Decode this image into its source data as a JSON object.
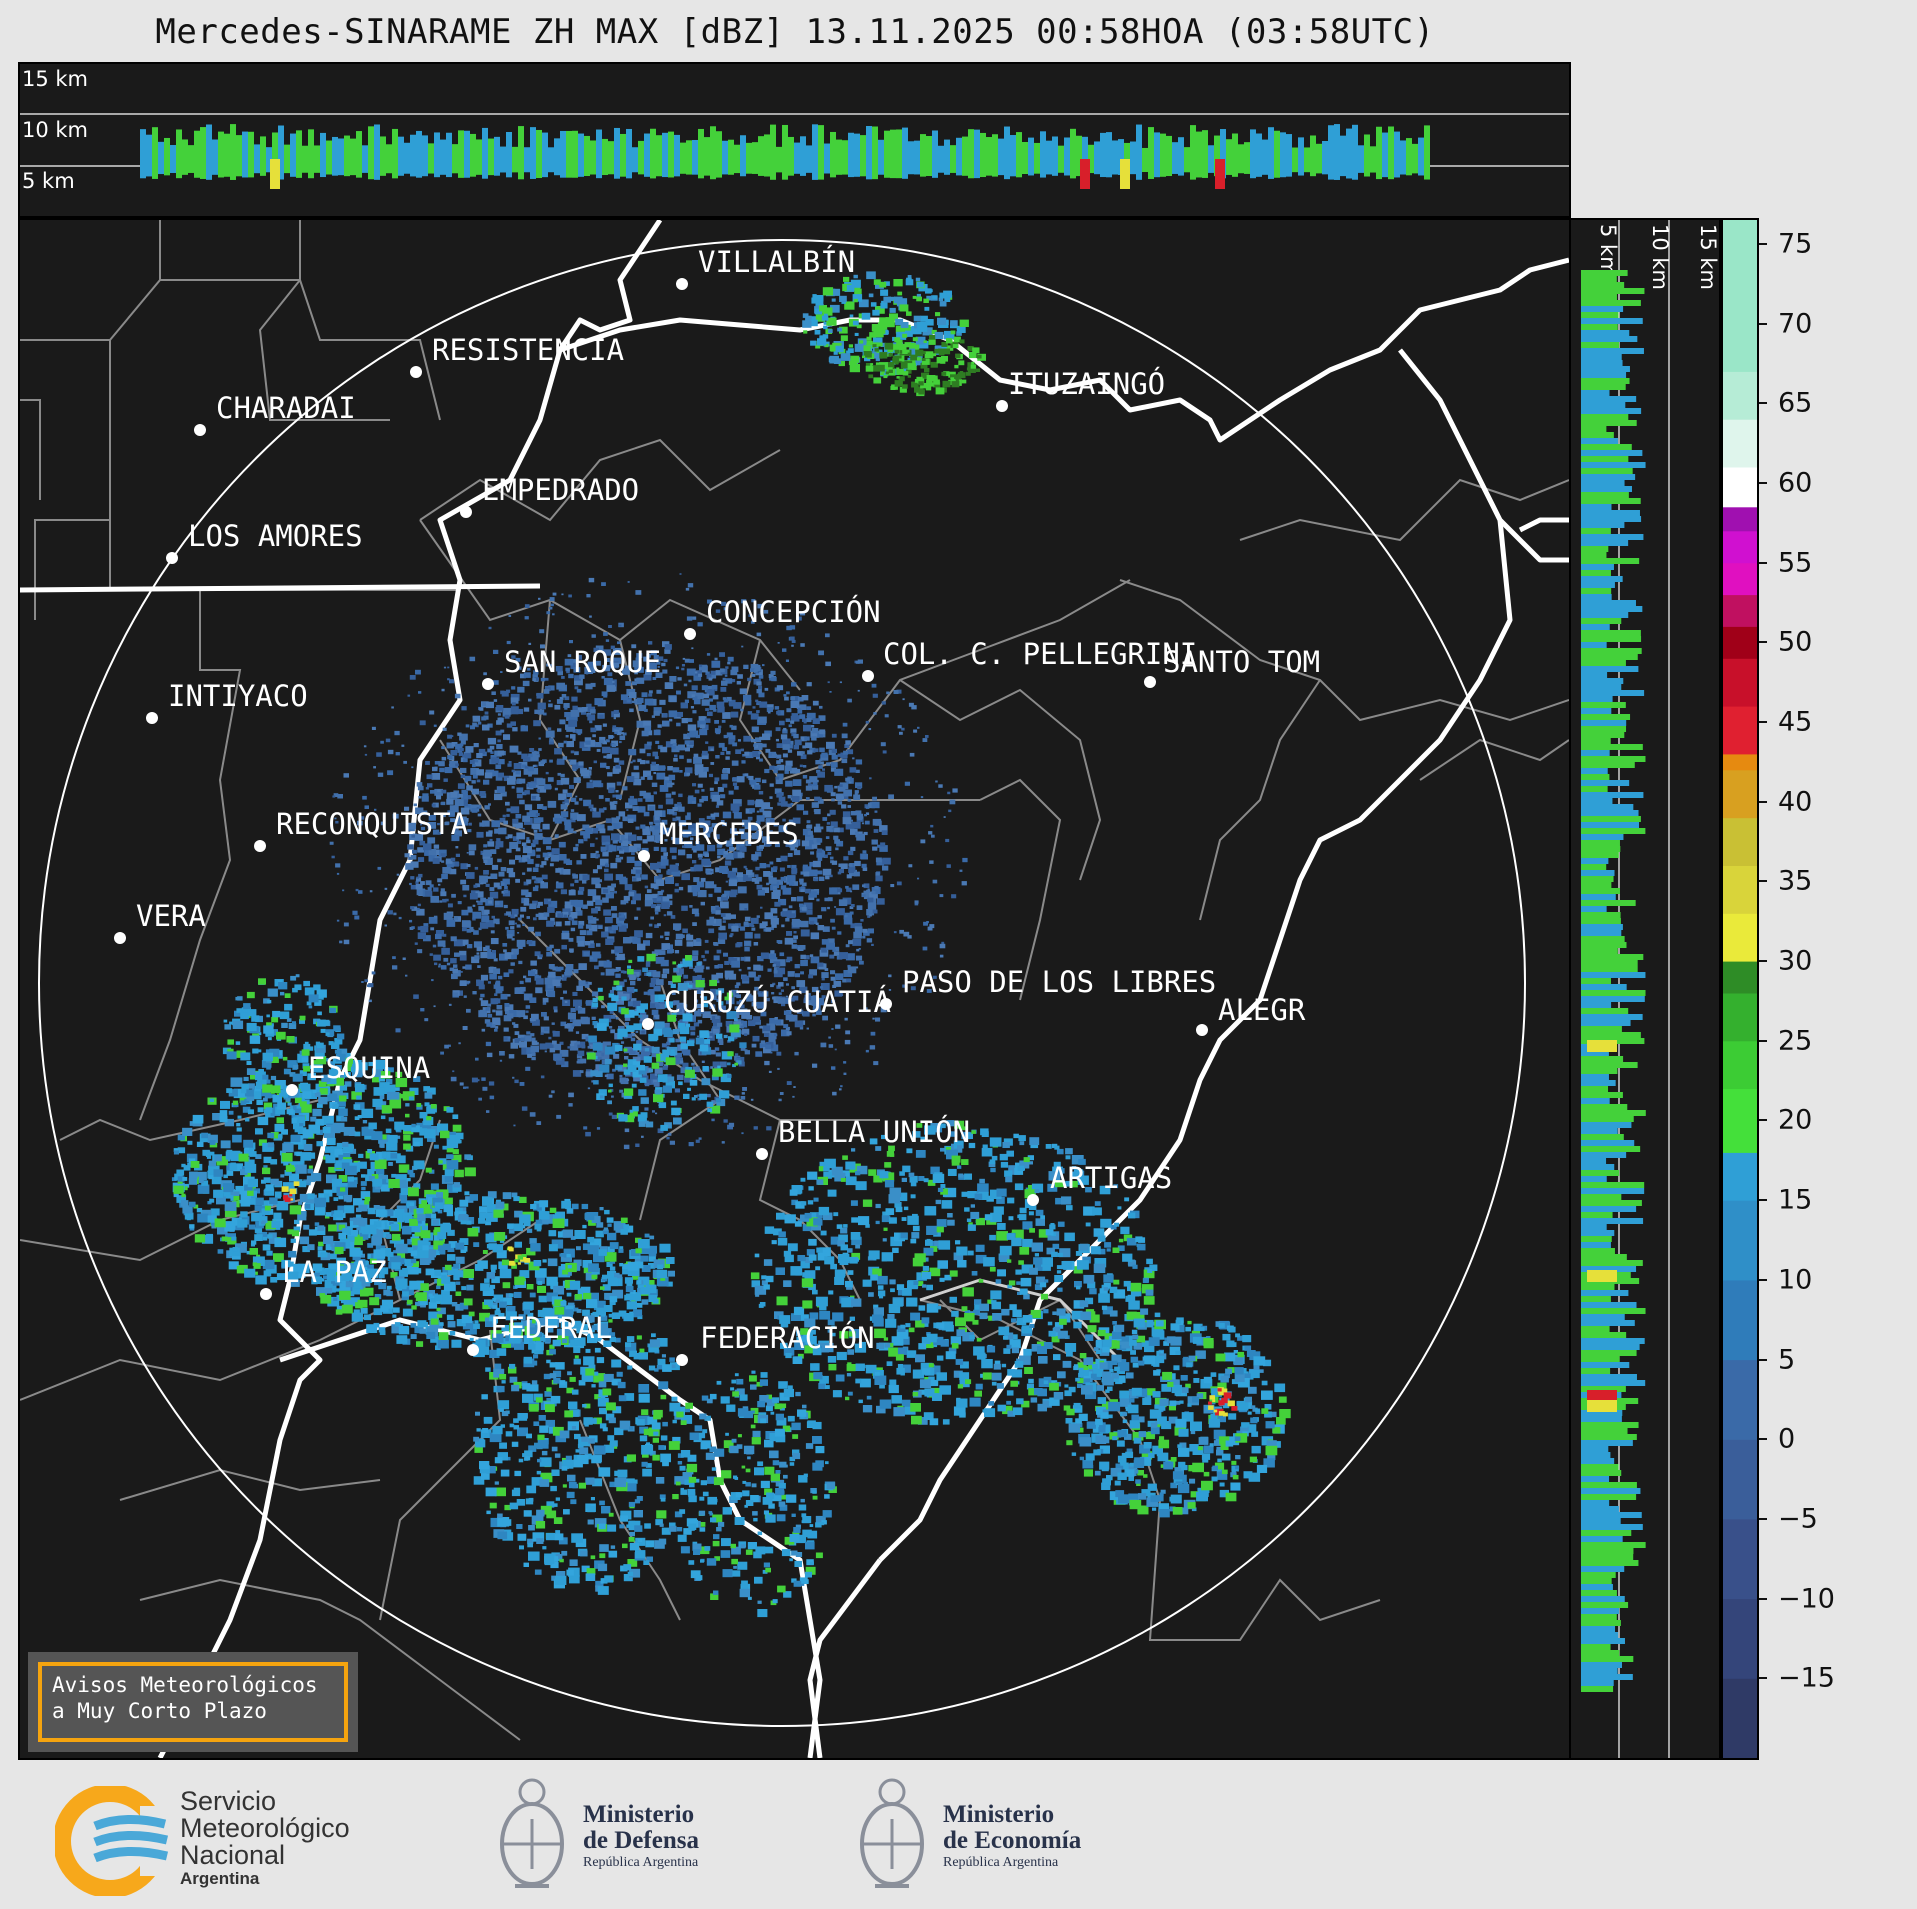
{
  "title": "Mercedes-SINARAME ZH MAX [dBZ] 13.11.2025 00:58HOA (03:58UTC)",
  "altitude_labels": {
    "km15": "15 km",
    "km10": "10 km",
    "km5": "5 km"
  },
  "cities": [
    {
      "name": "VILLALBÍN"
    },
    {
      "name": "RESISTENCIA"
    },
    {
      "name": "CHARADAI"
    },
    {
      "name": "ITUZAINGÓ"
    },
    {
      "name": "EMPEDRADO"
    },
    {
      "name": "LOS AMORES"
    },
    {
      "name": "CONCEPCIÓN"
    },
    {
      "name": "COL. C. PELLEGRINI"
    },
    {
      "name": "SANTO TOM"
    },
    {
      "name": "SAN ROQUE"
    },
    {
      "name": "INTIYACO"
    },
    {
      "name": "RECONQUISTA"
    },
    {
      "name": "MERCEDES"
    },
    {
      "name": "VERA"
    },
    {
      "name": "PASO DE LOS LIBRES"
    },
    {
      "name": "CURUZÚ CUATIÁ"
    },
    {
      "name": "ALEGR"
    },
    {
      "name": "ESQUINA"
    },
    {
      "name": "BELLA UNIÓN"
    },
    {
      "name": "ARTIGAS"
    },
    {
      "name": "LA PAZ"
    },
    {
      "name": "FEDERAL"
    },
    {
      "name": "FEDERACIÓN"
    }
  ],
  "colorbar": {
    "ticks": [
      "75",
      "70",
      "65",
      "60",
      "55",
      "50",
      "45",
      "40",
      "35",
      "30",
      "25",
      "20",
      "15",
      "10",
      "5",
      "0",
      "−5",
      "−10",
      "−15"
    ],
    "range": [
      -20,
      76.5
    ]
  },
  "avisos": {
    "line1": "Avisos Meteorológicos",
    "line2": "a Muy Corto Plazo"
  },
  "footer": {
    "smn": {
      "line1": "Servicio",
      "line2": "Meteorológico",
      "line3": "Nacional",
      "line4": "Argentina"
    },
    "defensa": {
      "line1": "Ministerio",
      "line2": "de Defensa",
      "line3": "República Argentina"
    },
    "economia": {
      "line1": "Ministerio",
      "line2": "de Economía",
      "line3": "República Argentina"
    }
  },
  "colors": {
    "panel_bg": "#1a1a1a",
    "border": "#ffffff",
    "province_lines": "#8a8a8a",
    "echo_blue": "#3a6aa8",
    "echo_light_blue": "#2f9fd6",
    "echo_green": "#44d13a",
    "echo_yellow": "#e6e03a",
    "echo_red": "#d81f2a",
    "accent_orange": "#f5a40f"
  }
}
